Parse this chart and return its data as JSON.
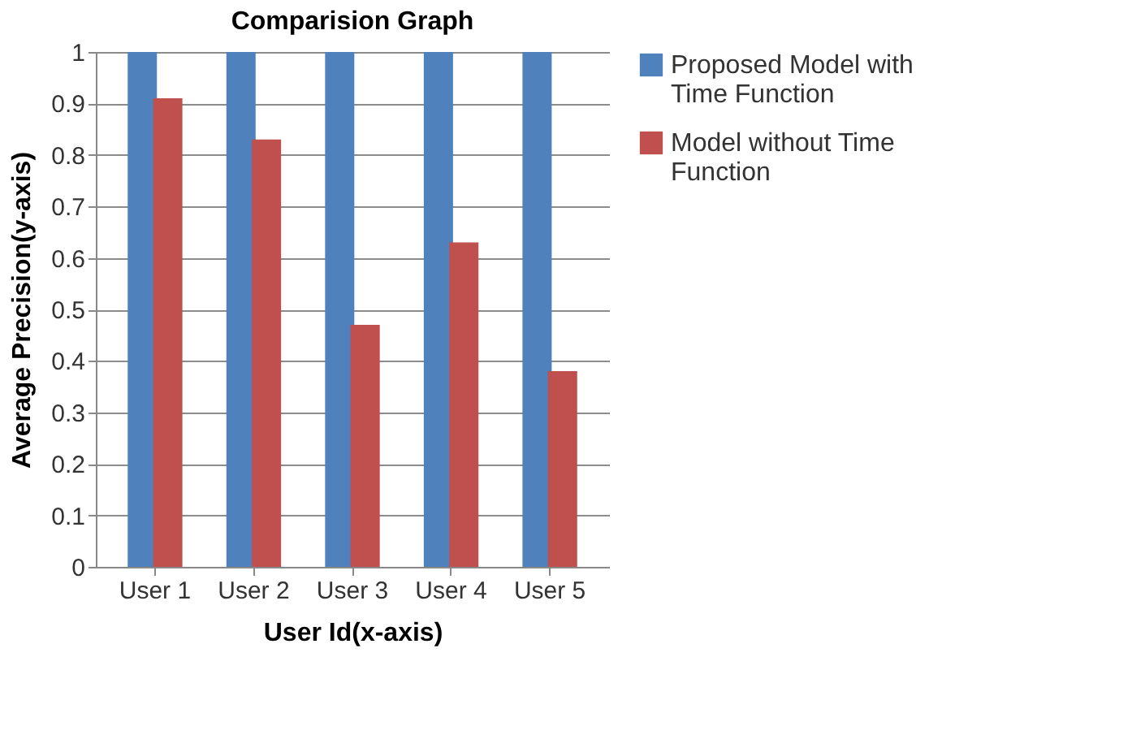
{
  "chart_data": {
    "type": "bar",
    "title": "Comparision Graph",
    "xlabel": "User Id(x-axis)",
    "ylabel": "Average Precision(y-axis)",
    "categories": [
      "User 1",
      "User 2",
      "User 3",
      "User 4",
      "User 5"
    ],
    "series": [
      {
        "name": "Proposed Model with Time Function",
        "color": "#4f81bd",
        "values": [
          1,
          1,
          1,
          1,
          1
        ]
      },
      {
        "name": "Model without Time Function",
        "color": "#c0504d",
        "values": [
          0.91,
          0.83,
          0.47,
          0.63,
          0.38
        ]
      }
    ],
    "ylim": [
      0,
      1
    ],
    "yticks": [
      0,
      0.1,
      0.2,
      0.3,
      0.4,
      0.5,
      0.6,
      0.7,
      0.8,
      0.9,
      1
    ],
    "grid": "y",
    "legend": "right"
  }
}
